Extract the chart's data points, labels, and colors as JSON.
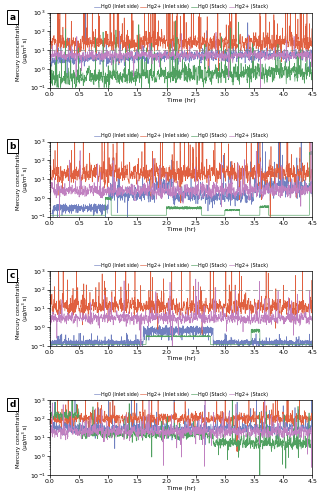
{
  "panels": [
    "a",
    "b",
    "c",
    "d"
  ],
  "colors": {
    "hg0_inlet": "#7080c0",
    "hg2_inlet": "#e06040",
    "hg0_stack": "#50a060",
    "hg2_stack": "#c080c0"
  },
  "legend_labels": [
    "Hg0 (Inlet side)",
    "Hg2+ (Inlet side)",
    "Hg0 (Stack)",
    "Hg2+ (Stack)"
  ],
  "xlabel": "Time (hr)",
  "ylabel": "Mercury concentration\n(μg/m³ s)",
  "ylim_log": [
    0.1,
    1000
  ],
  "xlim": [
    0.0,
    4.5
  ],
  "xticks": [
    0.0,
    0.5,
    1.0,
    1.5,
    2.0,
    2.5,
    3.0,
    3.5,
    4.0,
    4.5
  ],
  "ref_line_a": 10,
  "ref_line_c": 100
}
